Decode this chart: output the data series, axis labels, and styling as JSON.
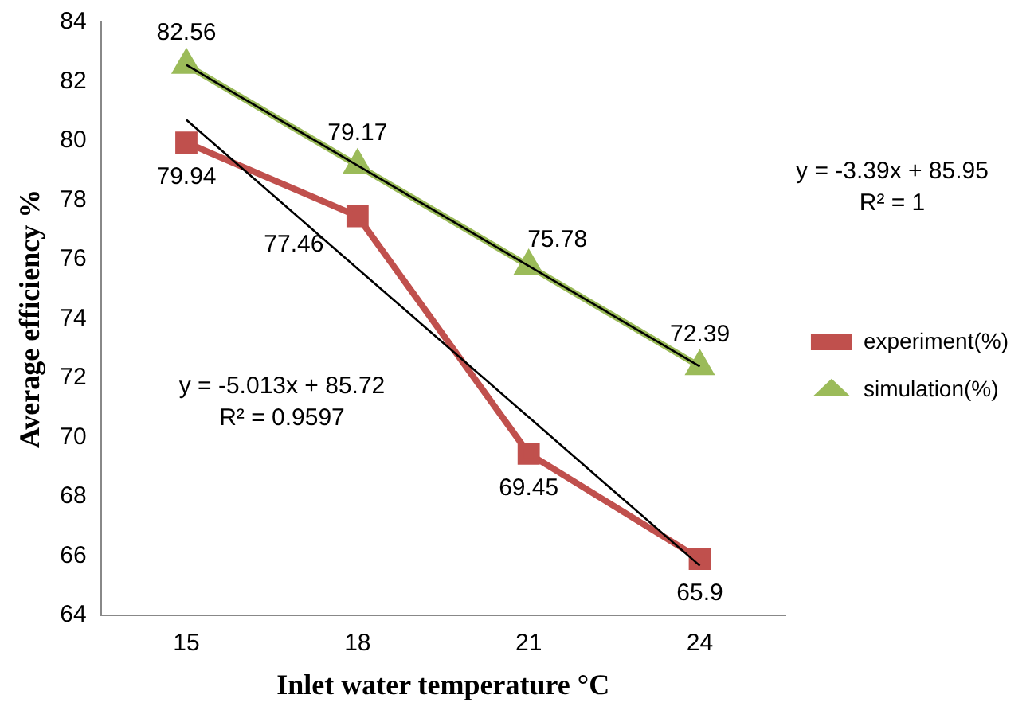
{
  "chart_data": {
    "type": "line",
    "xlabel": "Inlet water temperature °C",
    "ylabel": "Average efficiency %",
    "categories": [
      "15",
      "18",
      "21",
      "24"
    ],
    "series": [
      {
        "name": "experiment(%)",
        "color": "#c0504d",
        "marker": "square",
        "values": [
          79.94,
          77.46,
          69.45,
          65.9
        ],
        "value_labels": [
          "79.94",
          "77.46",
          "69.45",
          "65.9"
        ]
      },
      {
        "name": "simulation(%)",
        "color": "#9bbb59",
        "marker": "triangle",
        "values": [
          82.56,
          79.17,
          75.78,
          72.39
        ],
        "value_labels": [
          "82.56",
          "79.17",
          "75.78",
          "72.39"
        ]
      },
      {
        "color": "#000000",
        "marker": "none",
        "values": [
          80.71,
          75.69,
          70.68,
          65.67
        ]
      },
      {
        "color": "#000000",
        "marker": "none",
        "values": [
          82.56,
          79.17,
          75.78,
          72.39
        ]
      }
    ],
    "ylim": [
      64,
      84
    ],
    "yticks": [
      64,
      66,
      68,
      70,
      72,
      74,
      76,
      78,
      80,
      82,
      84
    ],
    "grid": false,
    "legend": "right",
    "annotations": [
      "y = -3.39x + 85.95",
      "R² = 1",
      "y = -5.013x + 85.72",
      "R² = 0.9597"
    ]
  }
}
